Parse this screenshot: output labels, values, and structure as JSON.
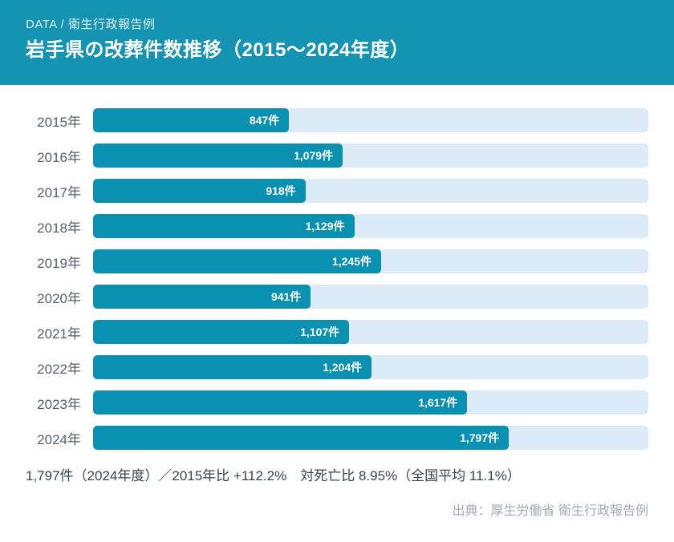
{
  "header": {
    "eyebrow": "DATA / 衛生行政報告例",
    "title": "岩手県の改葬件数推移（2015～2024年度）"
  },
  "chart_data": {
    "type": "bar",
    "orientation": "horizontal",
    "title": "岩手県の改葬件数推移（2015～2024年度）",
    "categories": [
      "2015年",
      "2016年",
      "2017年",
      "2018年",
      "2019年",
      "2020年",
      "2021年",
      "2022年",
      "2023年",
      "2024年"
    ],
    "values": [
      847,
      1079,
      918,
      1129,
      1245,
      941,
      1107,
      1204,
      1617,
      1797
    ],
    "value_labels": [
      "847件",
      "1,079件",
      "918件",
      "1,129件",
      "1,245件",
      "941件",
      "1,107件",
      "1,204件",
      "1,617件",
      "1,797件"
    ],
    "unit": "件",
    "xlabel": "",
    "ylabel": "",
    "xlim": [
      0,
      2400
    ],
    "grid": false,
    "legend": false,
    "value_labels_position": "inside-end"
  },
  "summary": "1,797件（2024年度）／2015年比 +112.2%　対死亡比 8.95%（全国平均 11.1%）",
  "source": "出典：厚生労働省 衛生行政報告例",
  "colors": {
    "header_bg": "#1593b2",
    "bar": "#0a90b0",
    "track": "#dbecf8",
    "year_label": "#57606d",
    "value_text": "#ffffff",
    "summary_text": "#3a4350",
    "source_text": "#a2aab8"
  }
}
